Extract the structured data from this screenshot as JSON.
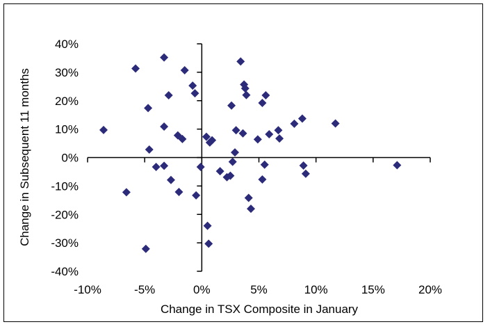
{
  "chart_data": {
    "type": "scatter",
    "title": "",
    "xlabel": "Change in TSX Composite in January",
    "ylabel": "Change in Subsequent 11 months",
    "xlim": [
      -0.1,
      0.2
    ],
    "ylim": [
      -0.4,
      0.4
    ],
    "x_ticks": [
      -0.1,
      -0.05,
      0.0,
      0.05,
      0.1,
      0.15,
      0.2
    ],
    "x_tick_labels": [
      "-10%",
      "-5%",
      "0%",
      "5%",
      "10%",
      "15%",
      "20%"
    ],
    "y_ticks": [
      0.4,
      0.3,
      0.2,
      0.1,
      0.0,
      -0.1,
      -0.2,
      -0.3,
      -0.4
    ],
    "y_tick_labels": [
      "40%",
      "30%",
      "20%",
      "10%",
      "0%",
      "-10%",
      "-20%",
      "-30%",
      "-40%"
    ],
    "grid": false,
    "legend": "none",
    "marker_color": "#2b2b7a",
    "marker": "diamond",
    "points": [
      {
        "x": -0.086,
        "y": 0.097
      },
      {
        "x": -0.066,
        "y": -0.122
      },
      {
        "x": -0.058,
        "y": 0.313
      },
      {
        "x": -0.049,
        "y": -0.321
      },
      {
        "x": -0.047,
        "y": 0.174
      },
      {
        "x": -0.046,
        "y": 0.028
      },
      {
        "x": -0.04,
        "y": -0.033
      },
      {
        "x": -0.033,
        "y": 0.352
      },
      {
        "x": -0.033,
        "y": 0.109
      },
      {
        "x": -0.033,
        "y": -0.029
      },
      {
        "x": -0.029,
        "y": 0.219
      },
      {
        "x": -0.027,
        "y": -0.079
      },
      {
        "x": -0.021,
        "y": 0.078
      },
      {
        "x": -0.02,
        "y": -0.121
      },
      {
        "x": -0.017,
        "y": 0.065
      },
      {
        "x": -0.015,
        "y": 0.307
      },
      {
        "x": -0.008,
        "y": 0.253
      },
      {
        "x": -0.006,
        "y": 0.226
      },
      {
        "x": -0.005,
        "y": -0.133
      },
      {
        "x": -0.001,
        "y": -0.033
      },
      {
        "x": 0.004,
        "y": 0.073
      },
      {
        "x": 0.005,
        "y": -0.24
      },
      {
        "x": 0.006,
        "y": -0.303
      },
      {
        "x": 0.007,
        "y": 0.053
      },
      {
        "x": 0.009,
        "y": 0.061
      },
      {
        "x": 0.016,
        "y": -0.048
      },
      {
        "x": 0.022,
        "y": -0.069
      },
      {
        "x": 0.025,
        "y": -0.064
      },
      {
        "x": 0.026,
        "y": 0.183
      },
      {
        "x": 0.027,
        "y": -0.015
      },
      {
        "x": 0.029,
        "y": 0.018
      },
      {
        "x": 0.03,
        "y": 0.096
      },
      {
        "x": 0.034,
        "y": 0.338
      },
      {
        "x": 0.036,
        "y": 0.085
      },
      {
        "x": 0.037,
        "y": 0.257
      },
      {
        "x": 0.038,
        "y": 0.243
      },
      {
        "x": 0.039,
        "y": 0.22
      },
      {
        "x": 0.041,
        "y": -0.142
      },
      {
        "x": 0.043,
        "y": -0.18
      },
      {
        "x": 0.049,
        "y": 0.064
      },
      {
        "x": 0.053,
        "y": 0.192
      },
      {
        "x": 0.053,
        "y": -0.077
      },
      {
        "x": 0.055,
        "y": -0.025
      },
      {
        "x": 0.056,
        "y": 0.219
      },
      {
        "x": 0.059,
        "y": 0.082
      },
      {
        "x": 0.067,
        "y": 0.096
      },
      {
        "x": 0.068,
        "y": 0.067
      },
      {
        "x": 0.081,
        "y": 0.119
      },
      {
        "x": 0.088,
        "y": 0.137
      },
      {
        "x": 0.089,
        "y": -0.028
      },
      {
        "x": 0.091,
        "y": -0.057
      },
      {
        "x": 0.117,
        "y": 0.12
      },
      {
        "x": 0.171,
        "y": -0.027
      }
    ]
  }
}
